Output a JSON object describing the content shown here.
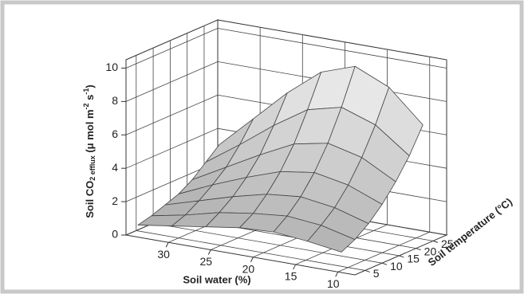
{
  "chart_data": {
    "type": "surface3d",
    "xlabel": "Soil water (%)",
    "ylabel": "Soil temperature (°C)",
    "zlabel": [
      "Soil CO",
      "2 efflux",
      " (μ mol m",
      "-2",
      " s",
      "-1",
      ")"
    ],
    "x": [
      34,
      30,
      26,
      22,
      18,
      14,
      10
    ],
    "y": [
      3,
      7,
      11,
      15,
      19,
      23,
      27
    ],
    "z": [
      [
        0.6,
        0.9,
        1.2,
        1.5,
        1.6,
        1.4,
        1.1
      ],
      [
        0.8,
        1.2,
        1.7,
        2.0,
        2.2,
        2.0,
        1.5
      ],
      [
        1.1,
        1.7,
        2.3,
        2.8,
        3.0,
        2.7,
        2.1
      ],
      [
        1.4,
        2.3,
        3.1,
        3.8,
        4.1,
        3.7,
        2.9
      ],
      [
        1.9,
        3.0,
        4.1,
        5.1,
        5.5,
        5.0,
        3.9
      ],
      [
        2.6,
        4.0,
        5.5,
        6.8,
        7.3,
        6.6,
        5.1
      ],
      [
        3.3,
        5.2,
        7.1,
        8.7,
        9.4,
        8.5,
        6.6
      ]
    ],
    "xlim": [
      35,
      8
    ],
    "ylim": [
      2,
      29
    ],
    "zlim": [
      0,
      10.5
    ],
    "xticks": [
      30,
      25,
      20,
      15,
      10
    ],
    "yticks": [
      5,
      10,
      15,
      20,
      25
    ],
    "zticks": [
      0,
      2,
      4,
      6,
      8,
      10
    ],
    "grid": true,
    "color": "#444444"
  }
}
